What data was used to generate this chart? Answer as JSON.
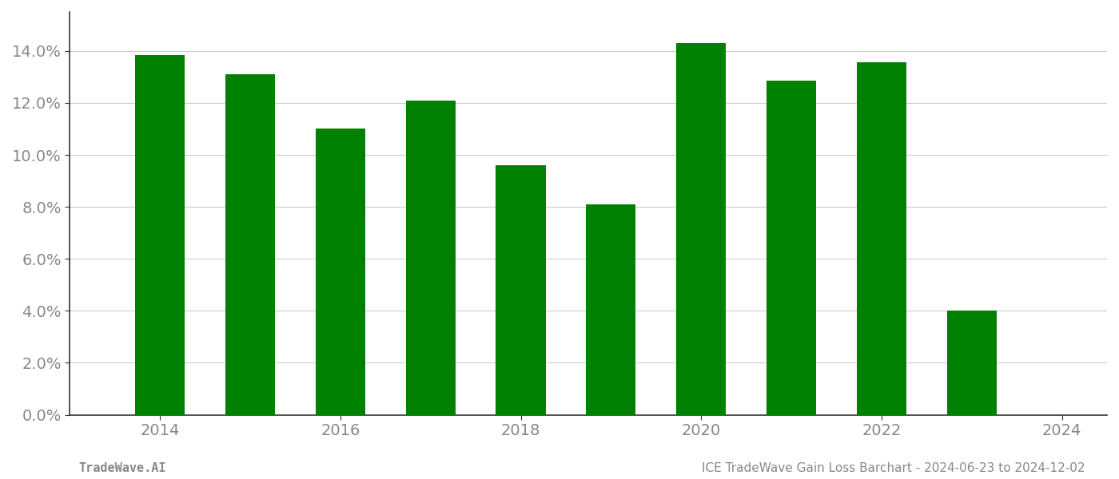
{
  "years": [
    2014,
    2015,
    2016,
    2017,
    2018,
    2019,
    2020,
    2021,
    2022,
    2023
  ],
  "values": [
    0.1385,
    0.131,
    0.11,
    0.121,
    0.096,
    0.081,
    0.143,
    0.1285,
    0.1355,
    0.04
  ],
  "bar_color": "#008000",
  "background_color": "#ffffff",
  "ylim": [
    0,
    0.155
  ],
  "yticks": [
    0.0,
    0.02,
    0.04,
    0.06,
    0.08,
    0.1,
    0.12,
    0.14
  ],
  "xticks": [
    2014,
    2016,
    2018,
    2020,
    2022,
    2024
  ],
  "xlim": [
    2013.0,
    2024.5
  ],
  "bar_width": 0.55,
  "footer_left": "TradeWave.AI",
  "footer_right": "ICE TradeWave Gain Loss Barchart - 2024-06-23 to 2024-12-02",
  "footer_fontsize": 11,
  "grid_color": "#cccccc",
  "axis_color": "#333333",
  "tick_label_color": "#888888",
  "tick_label_fontsize": 14
}
